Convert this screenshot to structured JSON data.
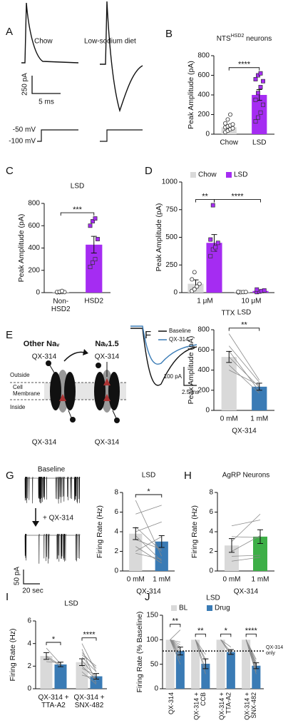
{
  "panel_a": {
    "letter": "A",
    "labels": [
      "Chow",
      "Low-sodium diet"
    ],
    "current_scale": "250 pA",
    "time_scale": "5 ms",
    "step": "-50 mV",
    "hold": "-100 mV"
  },
  "panel_e": {
    "letter": "E",
    "channels": [
      "Other Naᵥ",
      "Naᵥ1.5"
    ],
    "drug": "QX-314",
    "outside": "Outside",
    "membrane": "Cell\nMembrane",
    "inside": "Inside"
  },
  "panel_f": {
    "legend": [
      "Baseline",
      "QX-314"
    ],
    "current_scale": "100 pA",
    "time_scale": "2.5 ms"
  },
  "panel_g": {
    "before": "Baseline",
    "after": "+ QX-314",
    "current_scale": "50 pA",
    "time_scale": "20 sec"
  },
  "chart_data": [
    {
      "letter": "B",
      "type": "bar",
      "title_parts": [
        "NTS",
        "HSD2",
        " neurons"
      ],
      "ylabel": "Peak Amplitude (pA)",
      "categories": [
        "Chow",
        "LSD"
      ],
      "series": [
        {
          "colors": [
            "#d9d9d9",
            "#a52cf2"
          ],
          "markers": [
            "circle",
            "square"
          ],
          "values": [
            70,
            400
          ],
          "errors": [
            20,
            55
          ],
          "points": [
            [
              20,
              35,
              50,
              60,
              70,
              80,
              90,
              100,
              110,
              150,
              200
            ],
            [
              130,
              170,
              220,
              300,
              350,
              420,
              480,
              540,
              560,
              600,
              620
            ]
          ]
        }
      ],
      "ylim": [
        0,
        800
      ],
      "yticks": [
        0,
        200,
        400,
        600,
        800
      ],
      "significance": [
        {
          "label": "****",
          "bars": [
            0,
            1
          ]
        }
      ]
    },
    {
      "letter": "C",
      "type": "bar",
      "title": "LSD",
      "ylabel": "Peak Amplitude (pA)",
      "categories": [
        "Non-\nHSD2",
        "HSD2"
      ],
      "series": [
        {
          "colors": [
            "#d9d9d9",
            "#a52cf2"
          ],
          "markers": [
            "circle",
            "square"
          ],
          "values": [
            5,
            430
          ],
          "errors": [
            3,
            75
          ],
          "points": [
            [
              3,
              4,
              5,
              5,
              6,
              8,
              15
            ],
            [
              230,
              270,
              300,
              480,
              600,
              640,
              665
            ]
          ]
        }
      ],
      "ylim": [
        0,
        800
      ],
      "yticks": [
        0,
        200,
        400,
        600,
        800
      ],
      "significance": [
        {
          "label": "***",
          "bars": [
            0,
            1
          ]
        }
      ]
    },
    {
      "letter": "D",
      "type": "bar",
      "ylabel": "Peak Amplitude (pA)",
      "xlabel": "TTX",
      "legend": true,
      "categories": [
        "1 μM",
        "10 μM"
      ],
      "series": [
        {
          "name": "Chow",
          "color": "#d9d9d9",
          "marker": "circle",
          "values": [
            80,
            5
          ],
          "errors": [
            35,
            2
          ],
          "points": [
            [
              15,
              30,
              55,
              80,
              120,
              185
            ],
            [
              2,
              4,
              5,
              6,
              8
            ]
          ]
        },
        {
          "name": "LSD",
          "color": "#a52cf2",
          "marker": "square",
          "values": [
            450,
            15
          ],
          "errors": [
            75,
            6
          ],
          "points": [
            [
              330,
              390,
              410,
              450,
              480,
              790
            ],
            [
              5,
              10,
              14,
              20,
              28
            ]
          ]
        }
      ],
      "ylim": [
        0,
        1000
      ],
      "yticks": [
        0,
        250,
        500,
        750,
        1000
      ],
      "significance": [
        {
          "label": "**",
          "bars": [
            0,
            1
          ]
        },
        {
          "label": "****",
          "bars": [
            1,
            3
          ]
        }
      ]
    },
    {
      "letter": "F",
      "type": "bar",
      "title": "LSD",
      "ylabel": "Peak Amplitude (pA)",
      "xlabel": "QX-314",
      "categories": [
        "0 mM",
        "1 mM"
      ],
      "series": [
        {
          "colors": [
            "#d9d9d9",
            "#3a7bb5"
          ],
          "values": [
            530,
            235
          ],
          "errors": [
            55,
            35
          ]
        }
      ],
      "pairs": [
        [
          760,
          300
        ],
        [
          640,
          280
        ],
        [
          590,
          190
        ],
        [
          530,
          230
        ],
        [
          450,
          170
        ],
        [
          400,
          250
        ]
      ],
      "ylim": [
        0,
        800
      ],
      "yticks": [
        0,
        200,
        400,
        600,
        800
      ],
      "significance": [
        {
          "label": "**",
          "bars": [
            0,
            1
          ]
        }
      ]
    },
    {
      "letter": "G",
      "type": "bar",
      "title": "LSD",
      "ylabel": "Firing Rate (Hz)",
      "xlabel": "QX-314",
      "categories": [
        "0 mM",
        "1 mM"
      ],
      "series": [
        {
          "colors": [
            "#d9d9d9",
            "#3a7bb5"
          ],
          "values": [
            3.8,
            3.0
          ],
          "errors": [
            0.6,
            0.6
          ]
        }
      ],
      "pairs": [
        [
          7.2,
          1.5
        ],
        [
          5.8,
          6.7
        ],
        [
          4.5,
          2.0
        ],
        [
          4.0,
          5.0
        ],
        [
          3.2,
          2.2
        ],
        [
          2.5,
          0.8
        ],
        [
          2.0,
          3.5
        ],
        [
          1.8,
          1.2
        ],
        [
          3.6,
          1.0
        ]
      ],
      "ylim": [
        0,
        8
      ],
      "yticks": [
        0,
        2,
        4,
        6,
        8
      ],
      "significance": [
        {
          "label": "*",
          "bars": [
            0,
            1
          ]
        }
      ]
    },
    {
      "letter": "H",
      "type": "bar",
      "title": "AgRP Neurons",
      "ylabel": "Firing Rate (Hz)",
      "xlabel": "QX-314",
      "categories": [
        "0 mM",
        "1 mM"
      ],
      "series": [
        {
          "colors": [
            "#d9d9d9",
            "#3daf47"
          ],
          "values": [
            2.6,
            3.5
          ],
          "errors": [
            0.7,
            0.7
          ]
        }
      ],
      "pairs": [
        [
          4.6,
          5.2
        ],
        [
          3.0,
          5.8
        ],
        [
          2.0,
          3.6
        ],
        [
          1.5,
          1.6
        ],
        [
          1.0,
          1.4
        ],
        [
          3.5,
          3.4
        ]
      ],
      "ylim": [
        0,
        8
      ],
      "yticks": [
        0,
        2,
        4,
        6,
        8
      ]
    },
    {
      "letter": "I",
      "type": "bar",
      "title": "LSD",
      "ylabel": "Firing Rate (Hz)",
      "categories": [
        "QX-314 +\nTTA-A2",
        "QX-314 +\nSNX-482"
      ],
      "series": [
        {
          "color": "#d9d9d9",
          "values": [
            2.9,
            2.35
          ],
          "errors": [
            0.3,
            0.3
          ]
        },
        {
          "color": "#3a7bb5",
          "values": [
            2.15,
            1.1
          ],
          "errors": [
            0.2,
            0.25
          ]
        }
      ],
      "pairs": [
        [
          [
            3.6,
            2.2
          ],
          [
            2.8,
            2.0
          ],
          [
            2.4,
            2.3
          ],
          [
            2.9,
            2.1
          ]
        ],
        [
          [
            4.0,
            1.5
          ],
          [
            3.5,
            0.5
          ],
          [
            3.0,
            2.0
          ],
          [
            2.5,
            1.0
          ],
          [
            2.0,
            0.8
          ],
          [
            1.8,
            1.2
          ],
          [
            1.5,
            0.4
          ],
          [
            1.2,
            0.9
          ],
          [
            2.8,
            1.5
          ],
          [
            3.2,
            1.8
          ]
        ]
      ],
      "ylim": [
        0,
        6
      ],
      "yticks": [
        0,
        2,
        4,
        6
      ],
      "significance": [
        {
          "label": "*",
          "bars": [
            0,
            1
          ]
        },
        {
          "label": "****",
          "bars": [
            2,
            3
          ]
        }
      ]
    },
    {
      "letter": "J",
      "type": "bar",
      "title": "LSD",
      "ylabel": "Firing Rate (% Baseline)",
      "legend": true,
      "rotate_labels": true,
      "categories": [
        "QX-314",
        "QX-314 +\nCCB",
        "QX-314 +\nTTA-A2",
        "QX-314 +\nSNX-482"
      ],
      "series": [
        {
          "name": "BL",
          "color": "#d9d9d9",
          "values": [
            100,
            100,
            100,
            100
          ]
        },
        {
          "name": "Drug",
          "color": "#3a7bb5",
          "values": [
            77,
            51,
            75,
            47
          ],
          "errors": [
            8,
            10,
            5,
            6
          ]
        }
      ],
      "pairs": [
        [
          [
            100,
            120
          ],
          [
            100,
            95
          ],
          [
            100,
            85
          ],
          [
            100,
            75
          ],
          [
            100,
            70
          ],
          [
            100,
            60
          ],
          [
            100,
            50
          ],
          [
            100,
            90
          ],
          [
            100,
            65
          ],
          [
            100,
            80
          ]
        ],
        [
          [
            100,
            70
          ],
          [
            100,
            55
          ],
          [
            100,
            40
          ],
          [
            100,
            30
          ],
          [
            100,
            60
          ]
        ],
        [
          [
            100,
            85
          ],
          [
            100,
            75
          ],
          [
            100,
            70
          ],
          [
            100,
            68
          ]
        ],
        [
          [
            100,
            60
          ],
          [
            100,
            55
          ],
          [
            100,
            45
          ],
          [
            100,
            40
          ],
          [
            100,
            35
          ],
          [
            100,
            50
          ],
          [
            100,
            30
          ],
          [
            100,
            48
          ]
        ]
      ],
      "reference": {
        "value": 77,
        "label": "QX-314\nonly"
      },
      "ylim": [
        0,
        150
      ],
      "yticks": [
        0,
        50,
        100,
        150
      ],
      "significance": [
        {
          "label": "**",
          "bars": [
            0,
            1
          ]
        },
        {
          "label": "**",
          "bars": [
            2,
            3
          ]
        },
        {
          "label": "*",
          "bars": [
            4,
            5
          ]
        },
        {
          "label": "****",
          "bars": [
            6,
            7
          ]
        }
      ]
    }
  ]
}
